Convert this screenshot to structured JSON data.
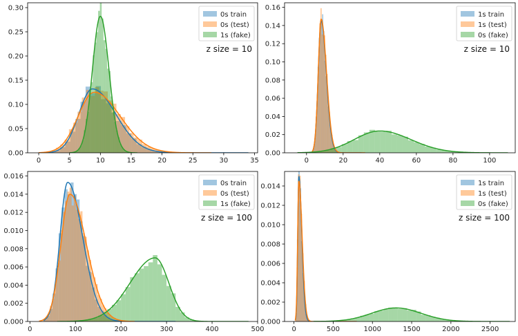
{
  "colors": {
    "blue": "#1f77b4",
    "orange": "#ff7f0e",
    "green": "#2ca02c"
  },
  "chart_data": [
    {
      "type": "area",
      "annotation": "z size = 10",
      "xlim": [
        -1.8,
        35.5
      ],
      "ylim": [
        0,
        0.31
      ],
      "xticks": [
        0,
        5,
        10,
        15,
        20,
        25,
        30,
        35
      ],
      "yticks": [
        0.0,
        0.05,
        0.1,
        0.15,
        0.2,
        0.25,
        0.3
      ],
      "ytick_labels": [
        "0.00",
        "0.05",
        "0.10",
        "0.15",
        "0.20",
        "0.25",
        "0.30"
      ],
      "legend": "top-right",
      "series": [
        {
          "name": "0s train",
          "color": "blue",
          "kde": {
            "peak": 8.7,
            "height": 0.132,
            "sl": 2.2,
            "sr": 3.8,
            "range": [
              1,
              34
            ]
          }
        },
        {
          "name": "0s (test)",
          "color": "orange",
          "kde": {
            "peak": 9.0,
            "height": 0.125,
            "sl": 2.6,
            "sr": 4.2,
            "range": [
              0,
              28
            ]
          }
        },
        {
          "name": "1s (fake)",
          "color": "green",
          "kde": {
            "peak": 10.0,
            "height": 0.282,
            "sl": 1.3,
            "sr": 1.4,
            "range": [
              5,
              16
            ]
          }
        }
      ]
    },
    {
      "type": "area",
      "annotation": "z size = 10",
      "xlim": [
        -12,
        114
      ],
      "ylim": [
        0,
        0.165
      ],
      "xticks": [
        0,
        20,
        40,
        60,
        80,
        100
      ],
      "yticks": [
        0.0,
        0.02,
        0.04,
        0.06,
        0.08,
        0.1,
        0.12,
        0.14,
        0.16
      ],
      "ytick_labels": [
        "0.00",
        "0.02",
        "0.04",
        "0.06",
        "0.08",
        "0.10",
        "0.12",
        "0.14",
        "0.16"
      ],
      "legend": "top-right",
      "series": [
        {
          "name": "1s train",
          "color": "blue",
          "kde": {
            "peak": 8,
            "height": 0.145,
            "sl": 1.6,
            "sr": 2.8,
            "range": [
              3,
              30
            ]
          }
        },
        {
          "name": "1s (test)",
          "color": "orange",
          "kde": {
            "peak": 8,
            "height": 0.147,
            "sl": 1.6,
            "sr": 2.9,
            "range": [
              3,
              32
            ]
          }
        },
        {
          "name": "0s (fake)",
          "color": "green",
          "kde": {
            "peak": 40,
            "height": 0.024,
            "sl": 14,
            "sr": 17,
            "range": [
              -5,
              110
            ]
          }
        }
      ]
    },
    {
      "type": "area",
      "annotation": "z size = 100",
      "xlim": [
        -5,
        500
      ],
      "ylim": [
        0,
        0.0165
      ],
      "xticks": [
        0,
        100,
        200,
        300,
        400,
        500
      ],
      "yticks": [
        0,
        0.002,
        0.004,
        0.006,
        0.008,
        0.01,
        0.012,
        0.014,
        0.016
      ],
      "ytick_labels": [
        "0.000",
        "0.002",
        "0.004",
        "0.006",
        "0.008",
        "0.010",
        "0.012",
        "0.014",
        "0.016"
      ],
      "legend": "top-right",
      "series": [
        {
          "name": "0s train",
          "color": "blue",
          "kde": {
            "peak": 83,
            "height": 0.0153,
            "sl": 17,
            "sr": 33,
            "range": [
              30,
              320
            ]
          }
        },
        {
          "name": "0s (test)",
          "color": "orange",
          "kde": {
            "peak": 88,
            "height": 0.014,
            "sl": 20,
            "sr": 36,
            "range": [
              20,
              230
            ]
          }
        },
        {
          "name": "1s (fake)",
          "color": "green",
          "kde": {
            "peak": 275,
            "height": 0.007,
            "sl": 55,
            "sr": 30,
            "range": [
              60,
              480
            ]
          }
        }
      ]
    },
    {
      "type": "area",
      "annotation": "z size = 100",
      "xlim": [
        -120,
        2820
      ],
      "ylim": [
        0,
        0.0155
      ],
      "xticks": [
        0,
        500,
        1000,
        1500,
        2000,
        2500
      ],
      "yticks": [
        0,
        0.002,
        0.004,
        0.006,
        0.008,
        0.01,
        0.012,
        0.014
      ],
      "ytick_labels": [
        "0.000",
        "0.002",
        "0.004",
        "0.006",
        "0.008",
        "0.010",
        "0.012",
        "0.014"
      ],
      "legend": "top-right",
      "series": [
        {
          "name": "1s train",
          "color": "blue",
          "kde": {
            "peak": 62,
            "height": 0.015,
            "sl": 14,
            "sr": 38,
            "range": [
              20,
              800
            ]
          }
        },
        {
          "name": "1s (test)",
          "color": "orange",
          "kde": {
            "peak": 62,
            "height": 0.0145,
            "sl": 15,
            "sr": 42,
            "range": [
              15,
              800
            ]
          }
        },
        {
          "name": "0s (fake)",
          "color": "green",
          "kde": {
            "peak": 1300,
            "height": 0.0014,
            "sl": 310,
            "sr": 320,
            "range": [
              250,
              2750
            ]
          }
        }
      ]
    }
  ]
}
